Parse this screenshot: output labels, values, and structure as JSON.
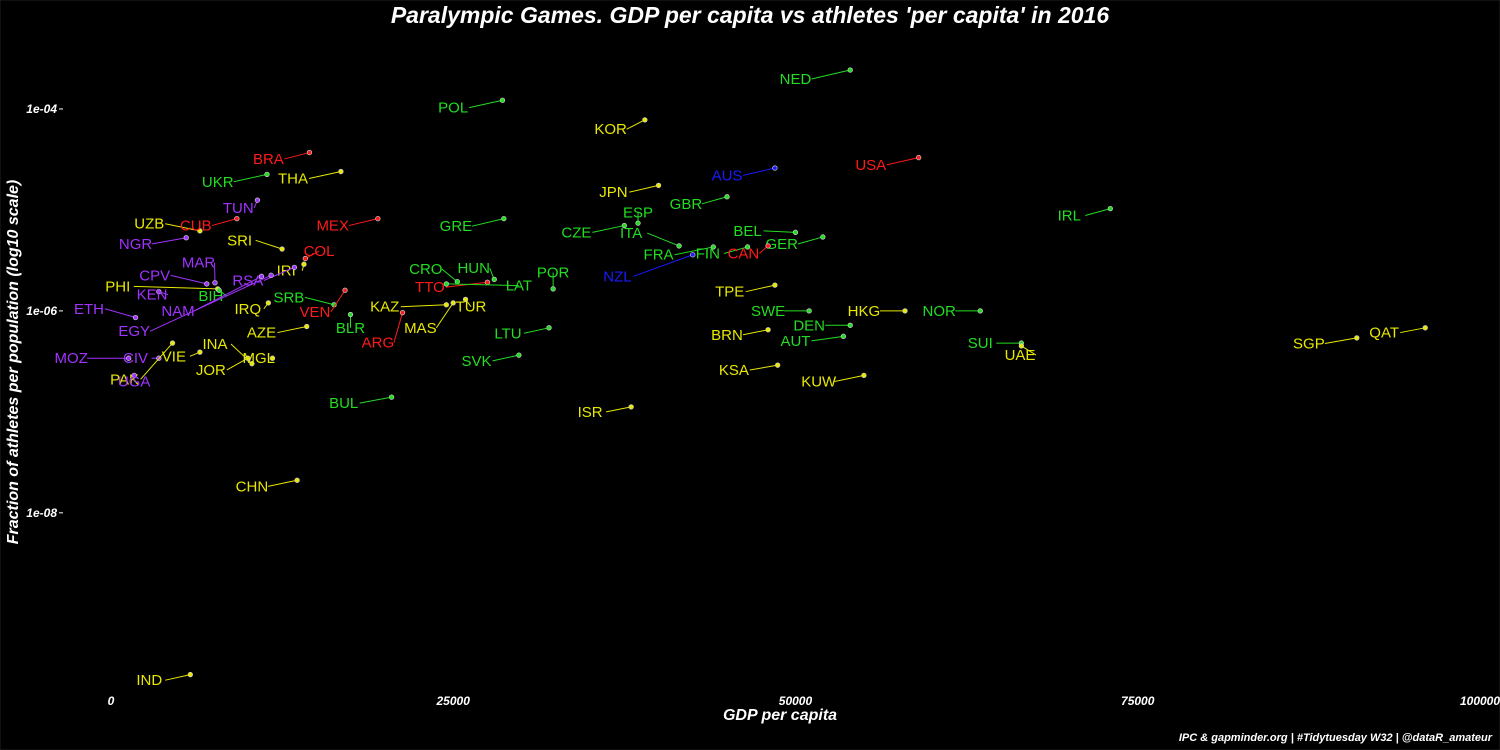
{
  "colors": {
    "background": "#000000",
    "Africa": "#a033ff",
    "Americas": "#ff1a1a",
    "Asia": "#e8e800",
    "Europe": "#22dd22",
    "Oceania": "#1a1aff"
  },
  "chart_data": {
    "type": "scatter",
    "title": "Paralympic Games. GDP per capita vs athletes 'per capita' in 2016",
    "xlabel": "GDP per capita",
    "ylabel": "Fraction of athletes per population (log10 scale)",
    "caption": "IPC & gapminder.org | #Tidytuesday W32 | @dataR_amateur",
    "x_axis": {
      "ticks": [
        0,
        25000,
        50000,
        75000,
        100000
      ],
      "tick_labels": [
        "0",
        "25000",
        "50000",
        "75000",
        "100000"
      ],
      "lim": [
        -3500,
        100000
      ]
    },
    "y_axis": {
      "scale": "log10",
      "ticks": [
        0.0001,
        1e-06,
        1e-08
      ],
      "tick_labels": [
        "1e-04",
        "1e-06",
        "1e-08"
      ],
      "lim": [
        1.4e-10,
        0.001
      ]
    },
    "grid": false,
    "legend": "none",
    "points": [
      {
        "label": "NED",
        "group": "Europe",
        "x": 54000,
        "y": 0.000243,
        "lx": 50000,
        "ly": 0.000198
      },
      {
        "label": "POL",
        "group": "Europe",
        "x": 28600,
        "y": 0.000122,
        "lx": 25000,
        "ly": 0.000103
      },
      {
        "label": "KOR",
        "group": "Asia",
        "x": 39000,
        "y": 7.8e-05,
        "lx": 36500,
        "ly": 6.3e-05
      },
      {
        "label": "BRA",
        "group": "Americas",
        "x": 14500,
        "y": 3.7e-05,
        "lx": 11500,
        "ly": 3.2e-05
      },
      {
        "label": "USA",
        "group": "Americas",
        "x": 59000,
        "y": 3.3e-05,
        "lx": 55500,
        "ly": 2.8e-05
      },
      {
        "label": "AUS",
        "group": "Oceania",
        "x": 48500,
        "y": 2.6e-05,
        "lx": 45000,
        "ly": 2.2e-05
      },
      {
        "label": "UKR",
        "group": "Europe",
        "x": 11400,
        "y": 2.25e-05,
        "lx": 7800,
        "ly": 1.9e-05
      },
      {
        "label": "THA",
        "group": "Asia",
        "x": 16800,
        "y": 2.4e-05,
        "lx": 13300,
        "ly": 2.05e-05
      },
      {
        "label": "JPN",
        "group": "Asia",
        "x": 40000,
        "y": 1.75e-05,
        "lx": 36700,
        "ly": 1.5e-05
      },
      {
        "label": "GBR",
        "group": "Europe",
        "x": 45000,
        "y": 1.35e-05,
        "lx": 42000,
        "ly": 1.15e-05
      },
      {
        "label": "TUN",
        "group": "Africa",
        "x": 10700,
        "y": 1.25e-05,
        "lx": 9300,
        "ly": 1.05e-05
      },
      {
        "label": "IRL",
        "group": "Europe",
        "x": 73000,
        "y": 1.03e-05,
        "lx": 70000,
        "ly": 8.8e-06
      },
      {
        "label": "UZB",
        "group": "Asia",
        "x": 6500,
        "y": 6.2e-06,
        "lx": 2800,
        "ly": 7.3e-06
      },
      {
        "label": "CUB",
        "group": "Americas",
        "x": 9200,
        "y": 8.2e-06,
        "lx": 6200,
        "ly": 7e-06
      },
      {
        "label": "MEX",
        "group": "Americas",
        "x": 19500,
        "y": 8.2e-06,
        "lx": 16200,
        "ly": 7e-06
      },
      {
        "label": "GRE",
        "group": "Europe",
        "x": 28700,
        "y": 8.2e-06,
        "lx": 25200,
        "ly": 6.9e-06
      },
      {
        "label": "ESP",
        "group": "Europe",
        "x": 38500,
        "y": 7.4e-06,
        "lx": 38500,
        "ly": 9.4e-06
      },
      {
        "label": "CZE",
        "group": "Europe",
        "x": 37500,
        "y": 7e-06,
        "lx": 34000,
        "ly": 6e-06
      },
      {
        "label": "BEL",
        "group": "Europe",
        "x": 50000,
        "y": 6e-06,
        "lx": 46500,
        "ly": 6.2e-06
      },
      {
        "label": "ITA",
        "group": "Europe",
        "x": 41500,
        "y": 4.4e-06,
        "lx": 38000,
        "ly": 5.9e-06
      },
      {
        "label": "GER",
        "group": "Europe",
        "x": 52000,
        "y": 5.4e-06,
        "lx": 49000,
        "ly": 4.6e-06
      },
      {
        "label": "SRI",
        "group": "Asia",
        "x": 12500,
        "y": 4.1e-06,
        "lx": 9400,
        "ly": 5e-06
      },
      {
        "label": "NGR",
        "group": "Africa",
        "x": 5500,
        "y": 5.3e-06,
        "lx": 1800,
        "ly": 4.6e-06
      },
      {
        "label": "COL",
        "group": "Americas",
        "x": 14200,
        "y": 3.3e-06,
        "lx": 15200,
        "ly": 3.9e-06
      },
      {
        "label": "FRA",
        "group": "Europe",
        "x": 44000,
        "y": 4.3e-06,
        "lx": 40000,
        "ly": 3.6e-06
      },
      {
        "label": "FIN",
        "group": "Europe",
        "x": 46500,
        "y": 4.3e-06,
        "lx": 43600,
        "ly": 3.7e-06
      },
      {
        "label": "CAN",
        "group": "Americas",
        "x": 48000,
        "y": 4.4e-06,
        "lx": 46200,
        "ly": 3.7e-06
      },
      {
        "label": "MAR",
        "group": "Africa",
        "x": 7600,
        "y": 1.9e-06,
        "lx": 6400,
        "ly": 3e-06
      },
      {
        "label": "IRI",
        "group": "Asia",
        "x": 14100,
        "y": 2.9e-06,
        "lx": 12800,
        "ly": 2.5e-06
      },
      {
        "label": "CRO",
        "group": "Europe",
        "x": 25300,
        "y": 1.95e-06,
        "lx": 23000,
        "ly": 2.6e-06
      },
      {
        "label": "HUN",
        "group": "Europe",
        "x": 28000,
        "y": 2.05e-06,
        "lx": 26500,
        "ly": 2.65e-06
      },
      {
        "label": "POR",
        "group": "Europe",
        "x": 32300,
        "y": 1.65e-06,
        "lx": 32300,
        "ly": 2.4e-06
      },
      {
        "label": "NZL",
        "group": "Oceania",
        "x": 42500,
        "y": 3.6e-06,
        "lx": 37000,
        "ly": 2.2e-06
      },
      {
        "label": "CPV",
        "group": "Africa",
        "x": 7000,
        "y": 1.85e-06,
        "lx": 3200,
        "ly": 2.25e-06
      },
      {
        "label": "RSA",
        "group": "Africa",
        "x": 13400,
        "y": 2.7e-06,
        "lx": 10000,
        "ly": 2e-06
      },
      {
        "label": "TTO",
        "group": "Americas",
        "x": 27500,
        "y": 1.92e-06,
        "lx": 23300,
        "ly": 1.72e-06
      },
      {
        "label": "LAT",
        "group": "Europe",
        "x": 24500,
        "y": 1.85e-06,
        "lx": 29800,
        "ly": 1.78e-06
      },
      {
        "label": "PHI",
        "group": "Asia",
        "x": 7800,
        "y": 1.65e-06,
        "lx": 500,
        "ly": 1.75e-06
      },
      {
        "label": "TPE",
        "group": "Asia",
        "x": 48500,
        "y": 1.8e-06,
        "lx": 45200,
        "ly": 1.55e-06
      },
      {
        "label": "KEN",
        "group": "Africa",
        "x": 3500,
        "y": 1.55e-06,
        "lx": 3000,
        "ly": 1.45e-06
      },
      {
        "label": "BIH",
        "group": "Europe",
        "x": 7900,
        "y": 1.6e-06,
        "lx": 7300,
        "ly": 1.4e-06
      },
      {
        "label": "SRB",
        "group": "Europe",
        "x": 16300,
        "y": 1.15e-06,
        "lx": 13000,
        "ly": 1.36e-06
      },
      {
        "label": "KAZ",
        "group": "Asia",
        "x": 24500,
        "y": 1.15e-06,
        "lx": 20000,
        "ly": 1.1e-06
      },
      {
        "label": "TUR",
        "group": "Asia",
        "x": 25900,
        "y": 1.3e-06,
        "lx": 26300,
        "ly": 1.1e-06
      },
      {
        "label": "IRQ",
        "group": "Asia",
        "x": 11500,
        "y": 1.2e-06,
        "lx": 10000,
        "ly": 1.05e-06
      },
      {
        "label": "ETH",
        "group": "Africa",
        "x": 1800,
        "y": 8.6e-07,
        "lx": -1600,
        "ly": 1.05e-06
      },
      {
        "label": "NAM",
        "group": "Africa",
        "x": 11000,
        "y": 2.2e-06,
        "lx": 4900,
        "ly": 1e-06
      },
      {
        "label": "VEN",
        "group": "Americas",
        "x": 17100,
        "y": 1.6e-06,
        "lx": 14900,
        "ly": 9.8e-07
      },
      {
        "label": "BLR",
        "group": "Europe",
        "x": 17500,
        "y": 9.2e-07,
        "lx": 17500,
        "ly": 6.8e-07
      },
      {
        "label": "MAS",
        "group": "Asia",
        "x": 25000,
        "y": 1.2e-06,
        "lx": 22600,
        "ly": 6.8e-07
      },
      {
        "label": "SWE",
        "group": "Europe",
        "x": 51000,
        "y": 1e-06,
        "lx": 48000,
        "ly": 1e-06
      },
      {
        "label": "HKG",
        "group": "Asia",
        "x": 58000,
        "y": 1e-06,
        "lx": 55000,
        "ly": 1e-06
      },
      {
        "label": "NOR",
        "group": "Europe",
        "x": 63500,
        "y": 1e-06,
        "lx": 60500,
        "ly": 1e-06
      },
      {
        "label": "EGY",
        "group": "Africa",
        "x": 11700,
        "y": 2.25e-06,
        "lx": 1700,
        "ly": 6.3e-07
      },
      {
        "label": "AZE",
        "group": "Asia",
        "x": 14300,
        "y": 7e-07,
        "lx": 11000,
        "ly": 6.1e-07
      },
      {
        "label": "DEN",
        "group": "Europe",
        "x": 54000,
        "y": 7.2e-07,
        "lx": 51000,
        "ly": 7.2e-07
      },
      {
        "label": "LTU",
        "group": "Europe",
        "x": 32000,
        "y": 6.8e-07,
        "lx": 29000,
        "ly": 6e-07
      },
      {
        "label": "BRN",
        "group": "Asia",
        "x": 48000,
        "y": 6.5e-07,
        "lx": 45000,
        "ly": 5.8e-07
      },
      {
        "label": "AUT",
        "group": "Europe",
        "x": 53500,
        "y": 5.6e-07,
        "lx": 50000,
        "ly": 5.05e-07
      },
      {
        "label": "QAT",
        "group": "Asia",
        "x": 96000,
        "y": 6.8e-07,
        "lx": 93000,
        "ly": 6.1e-07
      },
      {
        "label": "ARG",
        "group": "Americas",
        "x": 21300,
        "y": 9.6e-07,
        "lx": 19500,
        "ly": 4.85e-07
      },
      {
        "label": "INA",
        "group": "Asia",
        "x": 10300,
        "y": 3e-07,
        "lx": 7600,
        "ly": 4.7e-07
      },
      {
        "label": "SGP",
        "group": "Asia",
        "x": 91000,
        "y": 5.4e-07,
        "lx": 87500,
        "ly": 4.75e-07
      },
      {
        "label": "SUI",
        "group": "Europe",
        "x": 66500,
        "y": 4.8e-07,
        "lx": 63500,
        "ly": 4.8e-07
      },
      {
        "label": "UAE",
        "group": "Asia",
        "x": 66500,
        "y": 4.5e-07,
        "lx": 66400,
        "ly": 3.65e-07
      },
      {
        "label": "CIV",
        "group": "Africa",
        "x": 3500,
        "y": 3.4e-07,
        "lx": 1800,
        "ly": 3.4e-07
      },
      {
        "label": "VIE",
        "group": "Asia",
        "x": 6500,
        "y": 3.9e-07,
        "lx": 4600,
        "ly": 3.55e-07
      },
      {
        "label": "MOZ",
        "group": "Africa",
        "x": 1300,
        "y": 3.4e-07,
        "lx": -2900,
        "ly": 3.4e-07
      },
      {
        "label": "MGL",
        "group": "Asia",
        "x": 11800,
        "y": 3.4e-07,
        "lx": 10800,
        "ly": 3.4e-07
      },
      {
        "label": "SVK",
        "group": "Europe",
        "x": 29800,
        "y": 3.65e-07,
        "lx": 26700,
        "ly": 3.2e-07
      },
      {
        "label": "JOR",
        "group": "Asia",
        "x": 10000,
        "y": 3.4e-07,
        "lx": 7300,
        "ly": 2.6e-07
      },
      {
        "label": "KSA",
        "group": "Asia",
        "x": 48700,
        "y": 2.9e-07,
        "lx": 45500,
        "ly": 2.6e-07
      },
      {
        "label": "PAK",
        "group": "Asia",
        "x": 4500,
        "y": 4.8e-07,
        "lx": 1000,
        "ly": 2.1e-07
      },
      {
        "label": "UGA",
        "group": "Africa",
        "x": 1700,
        "y": 2.3e-07,
        "lx": 1700,
        "ly": 2e-07
      },
      {
        "label": "KUW",
        "group": "Asia",
        "x": 55000,
        "y": 2.3e-07,
        "lx": 51700,
        "ly": 2e-07
      },
      {
        "label": "ISR",
        "group": "Asia",
        "x": 38000,
        "y": 1.12e-07,
        "lx": 35000,
        "ly": 1e-07
      },
      {
        "label": "BUL",
        "group": "Europe",
        "x": 20500,
        "y": 1.4e-07,
        "lx": 17000,
        "ly": 1.22e-07
      },
      {
        "label": "CHN",
        "group": "Asia",
        "x": 13600,
        "y": 2.1e-08,
        "lx": 10300,
        "ly": 1.83e-08
      },
      {
        "label": "IND",
        "group": "Asia",
        "x": 5800,
        "y": 2.5e-10,
        "lx": 2800,
        "ly": 2.2e-10
      }
    ]
  }
}
